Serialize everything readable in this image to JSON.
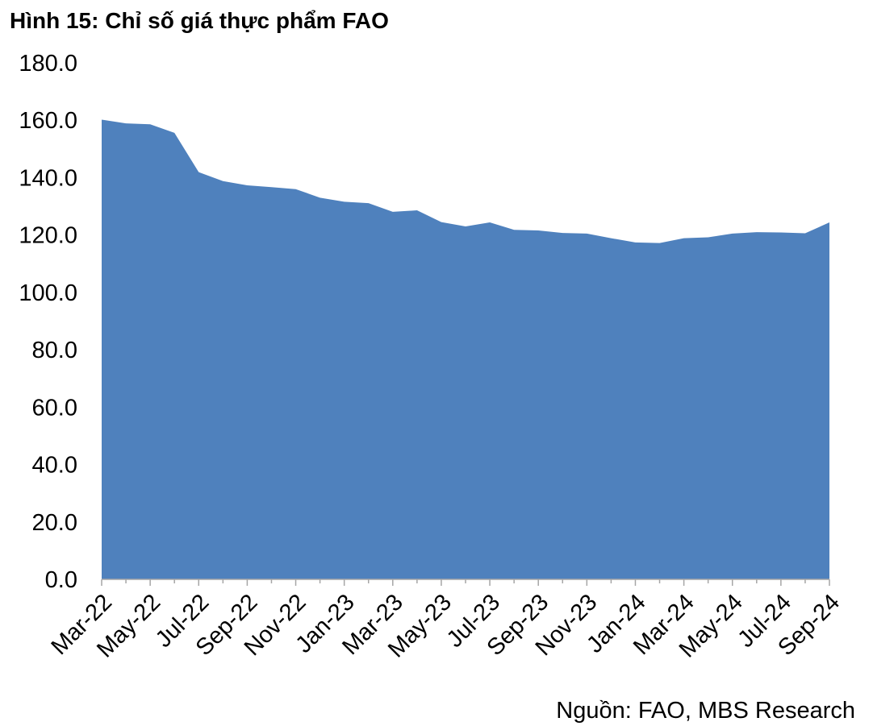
{
  "chart_data": {
    "type": "area",
    "title": "Hình 15: Chỉ số giá thực phẩm FAO",
    "source": "Nguồn: FAO, MBS Research",
    "ylim": [
      0,
      180
    ],
    "yticks": [
      "0.0",
      "20.0",
      "40.0",
      "60.0",
      "80.0",
      "100.0",
      "120.0",
      "140.0",
      "160.0",
      "180.0"
    ],
    "xtick_labels": [
      "Mar-22",
      "May-22",
      "Jul-22",
      "Sep-22",
      "Nov-22",
      "Jan-23",
      "Mar-23",
      "May-23",
      "Jul-23",
      "Sep-23",
      "Nov-23",
      "Jan-24",
      "Mar-24",
      "May-24",
      "Jul-24",
      "Sep-24"
    ],
    "grid": false,
    "color": "#4f81bd",
    "x": [
      "Mar-22",
      "Apr-22",
      "May-22",
      "Jun-22",
      "Jul-22",
      "Aug-22",
      "Sep-22",
      "Oct-22",
      "Nov-22",
      "Dec-22",
      "Jan-23",
      "Feb-23",
      "Mar-23",
      "Apr-23",
      "May-23",
      "Jun-23",
      "Jul-23",
      "Aug-23",
      "Sep-23",
      "Oct-23",
      "Nov-23",
      "Dec-23",
      "Jan-24",
      "Feb-24",
      "Mar-24",
      "Apr-24",
      "May-24",
      "Jun-24",
      "Jul-24",
      "Aug-24",
      "Sep-24"
    ],
    "values": [
      160.2,
      158.9,
      158.6,
      155.6,
      141.9,
      138.8,
      137.3,
      136.7,
      136.0,
      133.0,
      131.6,
      131.1,
      128.1,
      128.6,
      124.5,
      123.0,
      124.4,
      121.8,
      121.6,
      120.7,
      120.5,
      118.9,
      117.4,
      117.2,
      118.9,
      119.2,
      120.5,
      121.0,
      120.9,
      120.6,
      124.4
    ]
  }
}
